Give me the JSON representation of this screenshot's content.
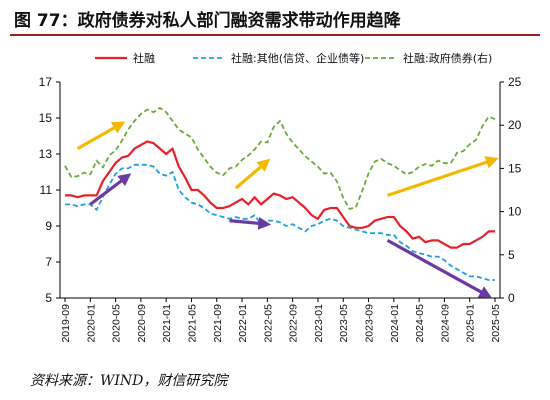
{
  "header": {
    "title": "图 77：政府债券对私人部门融资需求带动作用趋降"
  },
  "footer": {
    "source": "资料来源：WIND，财信研究院"
  },
  "colors": {
    "series1": "#e8202a",
    "series2": "#1fa0dc",
    "series3": "#6aaa3a",
    "arrow_up": "#f5b800",
    "arrow_down": "#6a3aa0"
  },
  "chart_data": {
    "type": "line",
    "title": "图 77：政府债券对私人部门融资需求带动作用趋降",
    "xlabel": "",
    "ylabel": "",
    "y2label": "",
    "ylim": [
      5,
      17
    ],
    "y2lim": [
      0,
      25
    ],
    "yticks": [
      "5",
      "7",
      "9",
      "11",
      "13",
      "15",
      "17"
    ],
    "y2ticks": [
      "0",
      "5",
      "10",
      "15",
      "20",
      "25"
    ],
    "x": [
      "2019-09",
      "2019-10",
      "2019-11",
      "2019-12",
      "2020-01",
      "2020-02",
      "2020-03",
      "2020-04",
      "2020-05",
      "2020-06",
      "2020-07",
      "2020-08",
      "2020-09",
      "2020-10",
      "2020-11",
      "2020-12",
      "2021-01",
      "2021-02",
      "2021-03",
      "2021-04",
      "2021-05",
      "2021-06",
      "2021-07",
      "2021-08",
      "2021-09",
      "2021-10",
      "2021-11",
      "2021-12",
      "2022-01",
      "2022-02",
      "2022-03",
      "2022-04",
      "2022-05",
      "2022-06",
      "2022-07",
      "2022-08",
      "2022-09",
      "2022-10",
      "2022-11",
      "2022-12",
      "2023-01",
      "2023-02",
      "2023-03",
      "2023-04",
      "2023-05",
      "2023-06",
      "2023-07",
      "2023-08",
      "2023-09",
      "2023-10",
      "2023-11",
      "2023-12",
      "2024-01",
      "2024-02",
      "2024-03",
      "2024-04",
      "2024-05",
      "2024-06",
      "2024-07",
      "2024-08",
      "2024-09",
      "2024-10",
      "2024-11",
      "2024-12",
      "2025-01",
      "2025-02",
      "2025-03",
      "2025-04",
      "2025-05"
    ],
    "xticks": [
      "2019-09",
      "2020-01",
      "2020-05",
      "2020-09",
      "2021-01",
      "2021-05",
      "2021-09",
      "2022-01",
      "2022-05",
      "2022-09",
      "2023-01",
      "2023-05",
      "2023-09",
      "2024-01",
      "2024-05",
      "2024-09",
      "2025-01",
      "2025-05"
    ],
    "series": [
      {
        "name": "社融",
        "axis": "left",
        "style": "solid",
        "values": [
          10.7,
          10.7,
          10.6,
          10.7,
          10.7,
          10.7,
          11.5,
          12.0,
          12.5,
          12.8,
          12.9,
          13.3,
          13.5,
          13.7,
          13.6,
          13.3,
          13.0,
          13.3,
          12.3,
          11.7,
          11.0,
          11.0,
          10.7,
          10.3,
          10.0,
          10.0,
          10.1,
          10.3,
          10.5,
          10.2,
          10.6,
          10.2,
          10.5,
          10.8,
          10.7,
          10.5,
          10.6,
          10.3,
          10.0,
          9.6,
          9.4,
          9.9,
          10.0,
          10.0,
          9.5,
          9.0,
          8.9,
          8.9,
          9.0,
          9.3,
          9.4,
          9.5,
          9.5,
          9.0,
          8.7,
          8.3,
          8.4,
          8.1,
          8.2,
          8.2,
          8.0,
          7.8,
          7.8,
          8.0,
          8.0,
          8.2,
          8.4,
          8.7,
          8.7
        ]
      },
      {
        "name": "社融:其他(信贷、企业债等)",
        "axis": "left",
        "style": "dashed",
        "values": [
          10.2,
          10.2,
          10.1,
          10.2,
          10.2,
          9.9,
          10.6,
          11.3,
          11.9,
          12.2,
          12.2,
          12.4,
          12.4,
          12.4,
          12.3,
          11.9,
          11.8,
          12.0,
          11.0,
          10.6,
          10.3,
          10.2,
          10.0,
          9.7,
          9.6,
          9.5,
          9.4,
          9.5,
          9.4,
          9.4,
          9.6,
          9.1,
          9.3,
          9.3,
          9.2,
          9.0,
          9.1,
          8.9,
          8.7,
          9.0,
          9.1,
          9.3,
          9.4,
          9.3,
          9.0,
          8.9,
          8.8,
          8.7,
          8.6,
          8.6,
          8.6,
          8.5,
          8.5,
          8.1,
          7.9,
          7.6,
          7.5,
          7.4,
          7.3,
          7.3,
          7.1,
          6.8,
          6.6,
          6.4,
          6.2,
          6.2,
          6.1,
          6.0,
          6.0
        ]
      },
      {
        "name": "社融:政府债券(右)",
        "axis": "right",
        "style": "dashed",
        "values": [
          15.3,
          14.0,
          14.1,
          14.5,
          14.3,
          15.9,
          15.1,
          16.5,
          17.1,
          18.2,
          19.5,
          20.5,
          21.3,
          21.8,
          21.5,
          22.0,
          21.5,
          20.5,
          19.5,
          19.0,
          18.6,
          17.2,
          16.2,
          15.2,
          14.5,
          14.2,
          15.0,
          15.2,
          16.0,
          16.5,
          17.2,
          18.1,
          18.0,
          19.8,
          20.5,
          19.0,
          18.0,
          17.2,
          16.4,
          15.8,
          15.2,
          14.4,
          14.5,
          13.5,
          11.6,
          10.3,
          10.5,
          12.4,
          14.4,
          15.8,
          16.1,
          15.6,
          15.3,
          14.8,
          14.3,
          14.6,
          15.2,
          15.5,
          15.3,
          15.9,
          15.6,
          15.6,
          16.8,
          17.0,
          17.8,
          18.3,
          19.9,
          21.0,
          20.7
        ]
      }
    ],
    "legend": {
      "placement": "top",
      "entries": [
        "社融",
        "社融:其他(信贷、企业债等)",
        "社融:政府债券(右)"
      ]
    },
    "annotations": [
      {
        "kind": "arrow",
        "color": "#f5b800",
        "from": [
          "2019-11",
          13.3
        ],
        "to": [
          "2020-06",
          14.7
        ]
      },
      {
        "kind": "arrow",
        "color": "#6a3aa0",
        "from": [
          "2020-01",
          10.2
        ],
        "to": [
          "2020-07",
          11.8
        ]
      },
      {
        "kind": "arrow",
        "color": "#f5b800",
        "from": [
          "2021-12",
          11.1
        ],
        "to": [
          "2022-05",
          12.6
        ]
      },
      {
        "kind": "arrow",
        "color": "#6a3aa0",
        "from": [
          "2021-11",
          9.3
        ],
        "to": [
          "2022-05",
          9.1
        ]
      },
      {
        "kind": "arrow",
        "color": "#f5b800",
        "from": [
          "2023-12",
          10.7
        ],
        "to": [
          "2025-05",
          12.7
        ]
      },
      {
        "kind": "arrow",
        "color": "#6a3aa0",
        "from": [
          "2023-12",
          8.2
        ],
        "to": [
          "2025-04",
          5.1
        ]
      }
    ],
    "grid": false
  }
}
